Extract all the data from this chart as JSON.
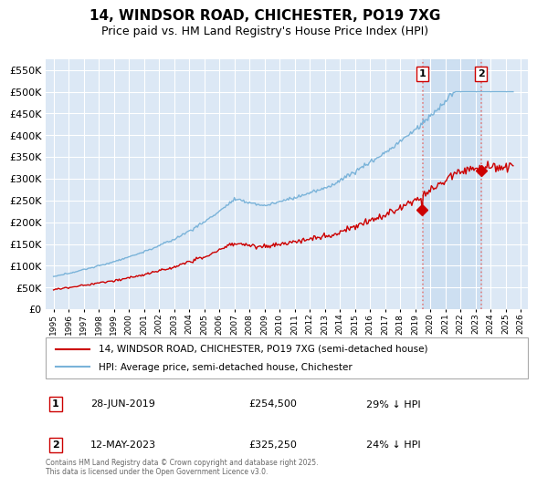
{
  "title": "14, WINDSOR ROAD, CHICHESTER, PO19 7XG",
  "subtitle": "Price paid vs. HM Land Registry's House Price Index (HPI)",
  "background_color": "#ffffff",
  "plot_bg_color": "#dce8f5",
  "grid_color": "#ffffff",
  "hpi_color": "#7ab3d9",
  "price_color": "#cc0000",
  "dashed_color": "#e08080",
  "shade_color": "#c8dcf0",
  "ylim": [
    0,
    575000
  ],
  "yticks": [
    0,
    50000,
    100000,
    150000,
    200000,
    250000,
    300000,
    350000,
    400000,
    450000,
    500000,
    550000
  ],
  "legend_entry1": "14, WINDSOR ROAD, CHICHESTER, PO19 7XG (semi-detached house)",
  "legend_entry2": "HPI: Average price, semi-detached house, Chichester",
  "annotation1_label": "1",
  "annotation1_date": "28-JUN-2019",
  "annotation1_price": "£254,500",
  "annotation1_hpi": "29% ↓ HPI",
  "annotation2_label": "2",
  "annotation2_date": "12-MAY-2023",
  "annotation2_price": "£325,250",
  "annotation2_hpi": "24% ↓ HPI",
  "sale1_price": 254500,
  "sale2_price": 325250,
  "sale1_year": 2019.49,
  "sale2_year": 2023.36,
  "footer": "Contains HM Land Registry data © Crown copyright and database right 2025.\nThis data is licensed under the Open Government Licence v3.0."
}
